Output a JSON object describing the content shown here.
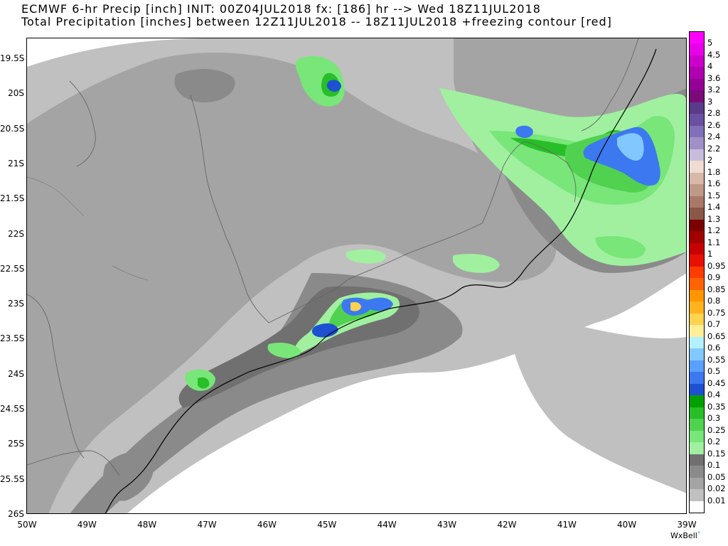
{
  "title": {
    "line1": "ECMWF 6-hr Precip [inch] INIT: 00Z04JUL2018 fx: [186] hr --> Wed 18Z11JUL2018",
    "line2": "Total Precipitation [inches] between 12Z11JUL2018 -- 18Z11JUL2018 +freezing contour [red]"
  },
  "axes": {
    "lat_labels": [
      "19.5S",
      "20S",
      "20.5S",
      "21S",
      "21.5S",
      "22S",
      "22.5S",
      "23S",
      "23.5S",
      "24S",
      "24.5S",
      "25S",
      "25.5S",
      "26S"
    ],
    "lon_labels": [
      "50W",
      "49W",
      "48W",
      "47W",
      "46W",
      "45W",
      "44W",
      "43W",
      "42W",
      "41W",
      "40W",
      "39W"
    ]
  },
  "colorbar": {
    "levels": [
      "5",
      "4.5",
      "4",
      "3.6",
      "3.2",
      "3",
      "2.8",
      "2.6",
      "2.4",
      "2.2",
      "2",
      "1.8",
      "1.6",
      "1.5",
      "1.4",
      "1.3",
      "1.2",
      "1.1",
      "1",
      "0.95",
      "0.9",
      "0.85",
      "0.8",
      "0.75",
      "0.7",
      "0.65",
      "0.6",
      "0.55",
      "0.5",
      "0.45",
      "0.4",
      "0.35",
      "0.3",
      "0.25",
      "0.2",
      "0.15",
      "0.1",
      "0.05",
      "0.02",
      "0.01"
    ],
    "colors": [
      "#ff00ff",
      "#e800e8",
      "#cc00cc",
      "#b000b0",
      "#960096",
      "#7a0a7a",
      "#5a3a8a",
      "#6a50a0",
      "#8070b8",
      "#a090c8",
      "#c8bcdc",
      "#f0dcd0",
      "#d8b8a8",
      "#c09888",
      "#a87868",
      "#8a5848",
      "#7a0000",
      "#a00000",
      "#c80000",
      "#e81000",
      "#ff3c00",
      "#ff6400",
      "#ff9600",
      "#ffb41e",
      "#ffd250",
      "#ffee96",
      "#b4f0ff",
      "#82c8ff",
      "#5aa0ff",
      "#3c78f0",
      "#1e50d2",
      "#00a000",
      "#28be28",
      "#50d250",
      "#78e678",
      "#a0f0a0",
      "#707070",
      "#8a8a8a",
      "#a4a4a4",
      "#c0c0c0",
      "#ffffff"
    ]
  },
  "credit": {
    "brand": "WxBell",
    "mark": "°"
  }
}
